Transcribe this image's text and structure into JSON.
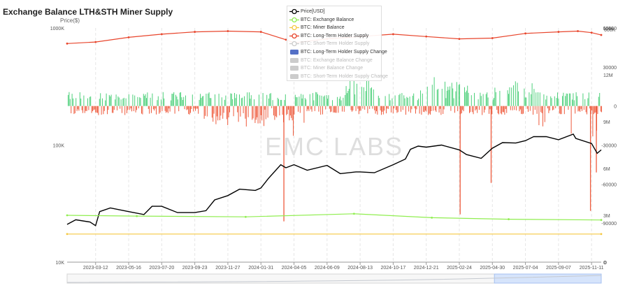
{
  "title": "Exchange Balance LTH&STH Miner Supply",
  "watermark": "EMC LABS",
  "chart_data": {
    "type": "line",
    "title": "Exchange Balance LTH&STH Miner Supply",
    "x_ticks": [
      "2023-03-12",
      "2023-05-16",
      "2023-07-20",
      "2023-09-23",
      "2023-11-27",
      "2024-01-31",
      "2024-04-05",
      "2024-06-09",
      "2024-08-13",
      "2024-10-17",
      "2024-12-21",
      "2025-02-24",
      "2025-04-30",
      "2025-07-04",
      "2025-09-07",
      "2025-11-11"
    ],
    "x_range": [
      "2023-01-15",
      "2025-11-30"
    ],
    "y_left": {
      "label": "Price($)",
      "scale": "log",
      "ticks": [
        "1000K",
        "100K",
        "10K"
      ],
      "range": [
        10000,
        1000000
      ]
    },
    "y_right_axes": [
      {
        "ticks": [
          "60000",
          "30000",
          "0",
          "-30000",
          "-60000",
          "-90000"
        ],
        "range": [
          -120000,
          60000
        ]
      },
      {
        "ticks": [
          "15M",
          "12M",
          "9M",
          "6M",
          "3M",
          "0"
        ],
        "range": [
          0,
          15000000
        ]
      },
      {
        "ticks": [
          "600K",
          "0"
        ],
        "range": [
          0,
          600000
        ]
      }
    ],
    "legend": [
      {
        "name": "Price[USD]",
        "color": "#000000",
        "active": true,
        "marker": "circle"
      },
      {
        "name": "BTC: Exchange Balance",
        "color": "#90ee50",
        "active": true,
        "marker": "circle"
      },
      {
        "name": "BTC: Miner Balance",
        "color": "#f5c842",
        "active": true,
        "marker": "circle"
      },
      {
        "name": "BTC: Long-Term Holder Supply",
        "color": "#e8452c",
        "active": true,
        "marker": "circle"
      },
      {
        "name": "BTC: Short-Term Holder Supply",
        "color": "#cccccc",
        "active": false,
        "marker": "circle"
      },
      {
        "name": "BTC: Long-Term Holder Supply Change",
        "color": "#5470c6",
        "active": true,
        "marker": "rect"
      },
      {
        "name": "BTC: Exchange Balance Change",
        "color": "#cccccc",
        "active": false,
        "marker": "rect"
      },
      {
        "name": "BTC: Miner Balance Change",
        "color": "#cccccc",
        "active": false,
        "marker": "rect"
      },
      {
        "name": "BTC: Short-Term Holder Supply Change",
        "color": "#cccccc",
        "active": false,
        "marker": "rect"
      }
    ],
    "series": [
      {
        "name": "Price[USD]",
        "axis": "log",
        "color": "#000000",
        "x": [
          "2023-01-15",
          "2023-02-01",
          "2023-03-01",
          "2023-03-12",
          "2023-03-20",
          "2023-04-10",
          "2023-05-16",
          "2023-06-15",
          "2023-07-01",
          "2023-07-20",
          "2023-08-20",
          "2023-09-23",
          "2023-10-15",
          "2023-11-01",
          "2023-11-27",
          "2023-12-20",
          "2024-01-20",
          "2024-01-31",
          "2024-02-15",
          "2024-03-10",
          "2024-03-20",
          "2024-04-05",
          "2024-05-01",
          "2024-06-09",
          "2024-07-05",
          "2024-08-05",
          "2024-08-13",
          "2024-09-10",
          "2024-10-17",
          "2024-11-10",
          "2024-11-20",
          "2024-12-05",
          "2024-12-21",
          "2025-01-20",
          "2025-02-24",
          "2025-03-10",
          "2025-04-08",
          "2025-04-30",
          "2025-05-20",
          "2025-06-15",
          "2025-07-04",
          "2025-07-20",
          "2025-08-14",
          "2025-09-07",
          "2025-10-06",
          "2025-10-11",
          "2025-11-11",
          "2025-11-22",
          "2025-11-30"
        ],
        "y": [
          21000,
          23000,
          22000,
          20500,
          27000,
          29000,
          27000,
          25500,
          30000,
          30000,
          26500,
          26500,
          27500,
          34000,
          37000,
          42000,
          41000,
          43000,
          52000,
          68000,
          64000,
          68000,
          61000,
          67000,
          57000,
          59000,
          59000,
          58000,
          68000,
          76000,
          92000,
          98000,
          96000,
          100000,
          91000,
          83000,
          77000,
          94000,
          105000,
          104000,
          109000,
          118000,
          118000,
          111000,
          124000,
          114000,
          103000,
          85000,
          91000
        ]
      },
      {
        "name": "BTC: Exchange Balance",
        "axis": "right-3",
        "color": "#90ee50",
        "x": [
          "2023-01-15",
          "2023-06-01",
          "2024-01-01",
          "2024-08-01",
          "2025-01-01",
          "2025-06-01",
          "2025-11-30"
        ],
        "y": [
          3000000,
          2950000,
          2900000,
          3100000,
          2850000,
          2750000,
          2700000
        ]
      },
      {
        "name": "BTC: Miner Balance",
        "axis": "right-3",
        "color": "#f5c842",
        "x": [
          "2023-01-15",
          "2025-11-30"
        ],
        "y": [
          1800000,
          1800000
        ]
      },
      {
        "name": "BTC: Long-Term Holder Supply",
        "axis": "right-3",
        "color": "#e8452c",
        "x": [
          "2023-01-15",
          "2023-03-12",
          "2023-05-16",
          "2023-07-20",
          "2023-09-23",
          "2023-11-27",
          "2024-01-31",
          "2024-03-20",
          "2024-04-05",
          "2024-06-09",
          "2024-08-13",
          "2024-10-17",
          "2024-12-21",
          "2025-02-24",
          "2025-04-30",
          "2025-07-04",
          "2025-09-07",
          "2025-10-15",
          "2025-11-11",
          "2025-11-30"
        ],
        "y": [
          14000000,
          14100000,
          14400000,
          14600000,
          14750000,
          14800000,
          14750000,
          14250000,
          14050000,
          14300000,
          14450000,
          14600000,
          14450000,
          14300000,
          14350000,
          14650000,
          14750000,
          14800000,
          14700000,
          14550000
        ]
      },
      {
        "name": "BTC: Long-Term Holder Supply Change",
        "axis": "right-1",
        "type": "bar",
        "color_positive": "#4cd07a",
        "color_negative": "#ee5a3c",
        "note_positive_max": 60000,
        "note_negative_min": -120000
      }
    ]
  }
}
